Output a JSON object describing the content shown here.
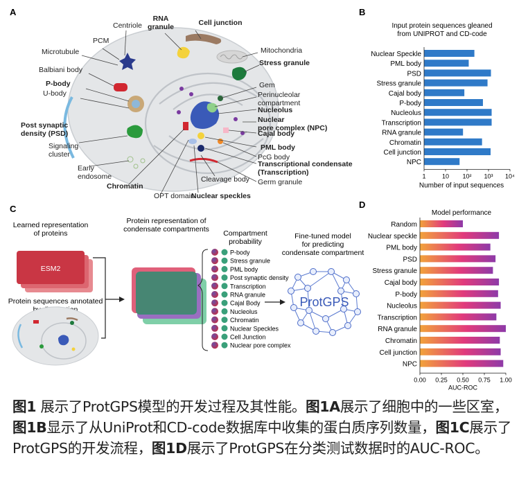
{
  "panelA": {
    "letter": "A",
    "labels": [
      {
        "id": "centriole",
        "text": "Centriole",
        "bold": false
      },
      {
        "id": "rna-granule",
        "text": "RNA\ngranule",
        "bold": true
      },
      {
        "id": "cell-junction",
        "text": "Cell junction",
        "bold": true
      },
      {
        "id": "pcm",
        "text": "PCM",
        "bold": false
      },
      {
        "id": "microtubule",
        "text": "Microtubule",
        "bold": false
      },
      {
        "id": "mitochondria",
        "text": "Mitochondria",
        "bold": false
      },
      {
        "id": "stress-granule",
        "text": "Stress granule",
        "bold": true
      },
      {
        "id": "balbiani-body",
        "text": "Balbiani body",
        "bold": false
      },
      {
        "id": "p-body",
        "text": "P-body",
        "bold": true
      },
      {
        "id": "u-body",
        "text": "U-body",
        "bold": false
      },
      {
        "id": "gem",
        "text": "Gem",
        "bold": false
      },
      {
        "id": "perinucleolar",
        "text": "Perinucleolar\ncompartment",
        "bold": false
      },
      {
        "id": "nucleolus",
        "text": "Nucleolus",
        "bold": true
      },
      {
        "id": "npc",
        "text": "Nuclear\npore complex (NPC)",
        "bold": true
      },
      {
        "id": "psd",
        "text": "Post synaptic\ndensity (PSD)",
        "bold": true
      },
      {
        "id": "cajal",
        "text": "Cajal body",
        "bold": true
      },
      {
        "id": "pml",
        "text": "PML body",
        "bold": true
      },
      {
        "id": "signaling",
        "text": "Signaling\ncluster",
        "bold": false
      },
      {
        "id": "pcg",
        "text": "PcG body",
        "bold": false
      },
      {
        "id": "transcription",
        "text": "Transcriptional condensate\n(Transcription)",
        "bold": true
      },
      {
        "id": "early-endosome",
        "text": "Early\nendosome",
        "bold": false
      },
      {
        "id": "germ",
        "text": "Germ granule",
        "bold": false
      },
      {
        "id": "cleavage",
        "text": "Cleavage body",
        "bold": false
      },
      {
        "id": "chromatin",
        "text": "Chromatin",
        "bold": true
      },
      {
        "id": "opt",
        "text": "OPT domain",
        "bold": false
      },
      {
        "id": "nuclear-speckles",
        "text": "Nuclear speckles",
        "bold": true
      }
    ]
  },
  "panelB": {
    "letter": "B",
    "chart_data": {
      "type": "bar",
      "orientation": "horizontal",
      "title": "Input protein sequences gleaned\nfrom UNIPROT and CD-code",
      "xlabel": "Number of input sequences",
      "xscale": "log",
      "xlim": [
        1,
        10000
      ],
      "xticks": [
        "1",
        "10",
        "10²",
        "10³",
        "10⁴"
      ],
      "color": "#2f7ac8",
      "categories": [
        "Nuclear Speckle",
        "PML body",
        "PSD",
        "Stress granule",
        "Cajal body",
        "P-body",
        "Nucleolus",
        "Transcription",
        "RNA granule",
        "Chromatin",
        "Cell junction",
        "NPC"
      ],
      "values": [
        220,
        120,
        1300,
        900,
        75,
        550,
        1400,
        1400,
        65,
        500,
        1250,
        45
      ]
    }
  },
  "panelC": {
    "letter": "C",
    "learned_title": "Learned representation\nof proteins",
    "esm2": "ESM2",
    "annotated_title": "Protein sequences annotated\nby distribution",
    "condensate_title": "Protein representation of\ncondensate compartments",
    "prob_title": "Compartment\nprobability",
    "model_title": "Fine-tuned model\nfor predicting\ncondensate compartment",
    "model_name": "ProtGPS",
    "compartments": [
      "P-body",
      "Stress granule",
      "PML body",
      "Post synaptic density",
      "Transcription",
      "RNA granule",
      "Cajal Body",
      "Nucleolus",
      "Chromatin",
      "Nuclear Speckles",
      "Cell Junction",
      "Nuclear pore complex"
    ]
  },
  "panelD": {
    "letter": "D",
    "chart_data": {
      "type": "bar",
      "orientation": "horizontal",
      "title": "Model performance",
      "xlabel": "AUC-ROC",
      "xlim": [
        0,
        1
      ],
      "xticks": [
        "0.00",
        "0.25",
        "0.50",
        "0.75",
        "1.00"
      ],
      "categories": [
        "Random",
        "Nuclear speckle",
        "PML body",
        "PSD",
        "Stress granule",
        "Cajal body",
        "P-body",
        "Nucleolus",
        "Transcription",
        "RNA granule",
        "Chromatin",
        "Cell junction",
        "NPC"
      ],
      "values": [
        0.5,
        0.92,
        0.82,
        0.88,
        0.85,
        0.92,
        0.91,
        0.94,
        0.89,
        1.0,
        0.93,
        0.94,
        0.97
      ]
    }
  },
  "caption": {
    "parts": [
      {
        "t": "图1",
        "b": true
      },
      {
        "t": " 展示了ProtGPS模型的开发过程及其性能。",
        "b": false
      },
      {
        "t": "图1A",
        "b": true
      },
      {
        "t": "展示了细胞中的一些区室，",
        "b": false
      },
      {
        "t": "图1B",
        "b": true
      },
      {
        "t": "显示了从UniProt和CD-code数据库中收集的蛋白质序列数量，",
        "b": false
      },
      {
        "t": "图1C",
        "b": true
      },
      {
        "t": "展示了ProtGPS的开发流程，",
        "b": false
      },
      {
        "t": "图1D",
        "b": true
      },
      {
        "t": "展示了ProtGPS在分类测试数据时的AUC-ROC。",
        "b": false
      }
    ]
  }
}
